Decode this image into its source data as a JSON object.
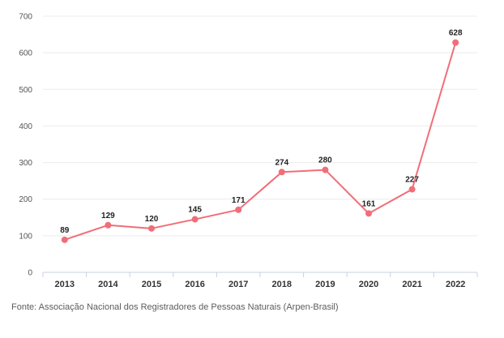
{
  "chart_data": {
    "type": "line",
    "categories": [
      "2013",
      "2014",
      "2015",
      "2016",
      "2017",
      "2018",
      "2019",
      "2020",
      "2021",
      "2022"
    ],
    "series": [
      {
        "values": [
          89,
          129,
          120,
          145,
          171,
          274,
          280,
          161,
          227,
          628
        ],
        "color": "#f06e78"
      }
    ],
    "ylim": [
      0,
      700
    ],
    "yticks": [
      0,
      100,
      200,
      300,
      400,
      500,
      600,
      700
    ],
    "grid": true,
    "data_labels": true,
    "gridline_color": "#ebebeb",
    "axis_color": "#c8d2df"
  },
  "source_note": "Fonte: Associação Nacional dos Registradores de Pessoas Naturais (Arpen-Brasil)"
}
